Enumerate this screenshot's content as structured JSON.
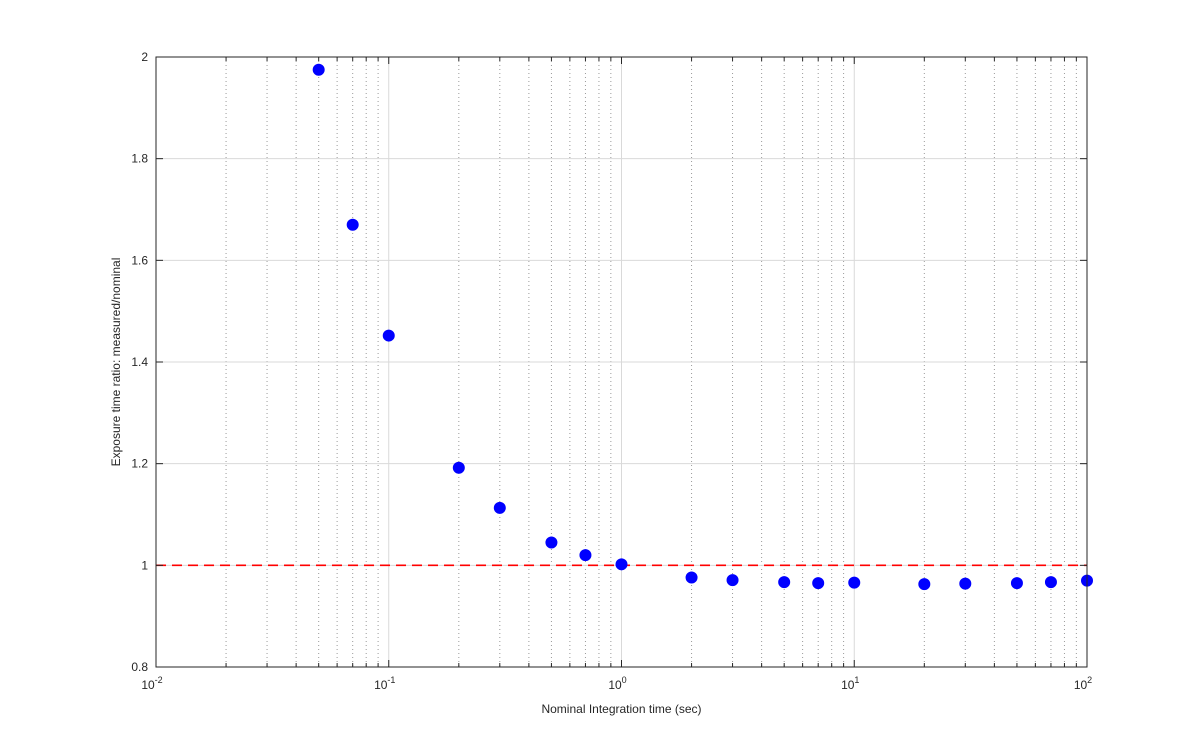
{
  "chart_data": {
    "type": "scatter",
    "xscale": "log",
    "xlim": [
      0.01,
      100
    ],
    "ylim": [
      0.8,
      2
    ],
    "xlabel": "Nominal Integration time (sec)",
    "ylabel": "Exposure time ratio: measured/nominal",
    "grid": true,
    "x_ticks": [
      {
        "base": "10",
        "exp": "-2",
        "value": 0.01
      },
      {
        "base": "10",
        "exp": "-1",
        "value": 0.1
      },
      {
        "base": "10",
        "exp": "0",
        "value": 1
      },
      {
        "base": "10",
        "exp": "1",
        "value": 10
      },
      {
        "base": "10",
        "exp": "2",
        "value": 100
      }
    ],
    "y_ticks": [
      {
        "label": "0.8",
        "value": 0.8
      },
      {
        "label": "1",
        "value": 1.0
      },
      {
        "label": "1.2",
        "value": 1.2
      },
      {
        "label": "1.4",
        "value": 1.4
      },
      {
        "label": "1.6",
        "value": 1.6
      },
      {
        "label": "1.8",
        "value": 1.8
      },
      {
        "label": "2",
        "value": 2.0
      }
    ],
    "series": [
      {
        "color": "#0000ff",
        "marker": "filled-circle",
        "x": [
          0.05,
          0.07,
          0.1,
          0.2,
          0.3,
          0.5,
          0.7,
          1,
          2,
          3,
          5,
          7,
          10,
          20,
          30,
          50,
          70,
          100
        ],
        "y": [
          1.975,
          1.67,
          1.452,
          1.192,
          1.113,
          1.045,
          1.02,
          1.002,
          0.976,
          0.971,
          0.967,
          0.965,
          0.966,
          0.963,
          0.964,
          0.965,
          0.967,
          0.97
        ]
      }
    ],
    "reference_line": {
      "y": 1.0,
      "color": "#ff0000",
      "style": "dashed"
    }
  }
}
